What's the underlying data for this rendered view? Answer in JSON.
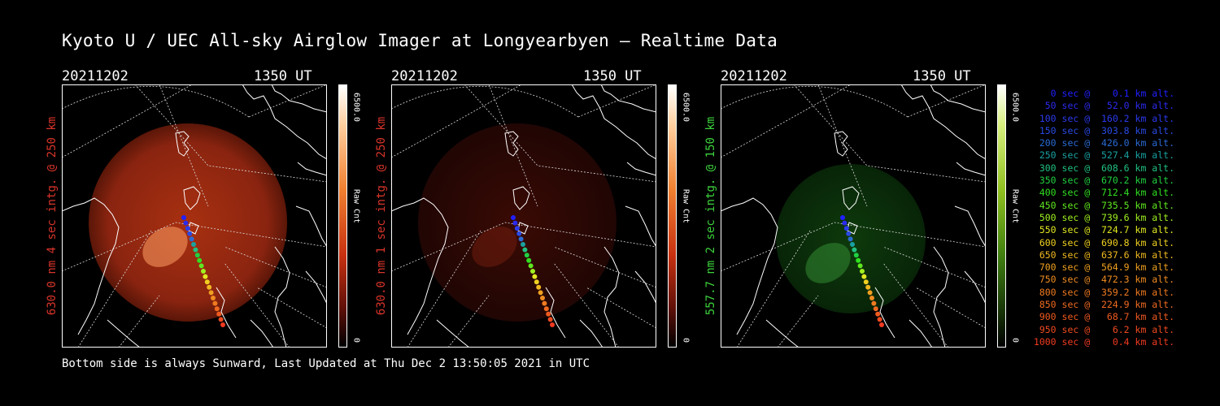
{
  "title": "Kyoto U / UEC All-sky Airglow Imager at Longyearbyen — Realtime Data",
  "footer": "Bottom side is always Sunward, Last Updated at Thu Dec  2 13:50:05 2021 in UTC",
  "panels": [
    {
      "date": "20211202",
      "time": "1350 UT",
      "ylabel": "630.0 nm 4 sec intg. @ 250 km",
      "label_color": "#d8342a",
      "cbar_max": "6500.0",
      "cbar_min": "0",
      "cbar_unit": "Raw Cnt",
      "glow": "red-strong",
      "cbar_color": "red"
    },
    {
      "date": "20211202",
      "time": "1350 UT",
      "ylabel": "630.0 nm 1 sec intg. @ 250 km",
      "label_color": "#d8342a",
      "cbar_max": "6500.0",
      "cbar_min": "0",
      "cbar_unit": "Raw Cnt",
      "glow": "red-weak",
      "cbar_color": "red"
    },
    {
      "date": "20211202",
      "time": "1350 UT",
      "ylabel": "557.7 nm 2 sec intg. @ 150 km",
      "label_color": "#3cd23c",
      "cbar_max": "6500.0",
      "cbar_min": "0",
      "cbar_unit": "Raw Cnt",
      "glow": "green",
      "cbar_color": "green"
    }
  ],
  "legend": [
    {
      "text": "   0 sec @    0.1 km alt.",
      "color": "#2020ff"
    },
    {
      "text": "  50 sec @   52.0 km alt.",
      "color": "#2a2aee"
    },
    {
      "text": " 100 sec @  160.2 km alt.",
      "color": "#2a3aee"
    },
    {
      "text": " 150 sec @  303.8 km alt.",
      "color": "#2a4ae4"
    },
    {
      "text": " 200 sec @  426.0 km alt.",
      "color": "#2a6ad4"
    },
    {
      "text": " 250 sec @  527.4 km alt.",
      "color": "#1aa0a0"
    },
    {
      "text": " 300 sec @  608.6 km alt.",
      "color": "#20c080"
    },
    {
      "text": " 350 sec @  670.2 km alt.",
      "color": "#20d040"
    },
    {
      "text": " 400 sec @  712.4 km alt.",
      "color": "#30e020"
    },
    {
      "text": " 450 sec @  735.5 km alt.",
      "color": "#60e820"
    },
    {
      "text": " 500 sec @  739.6 km alt.",
      "color": "#a0f020"
    },
    {
      "text": " 550 sec @  724.7 km alt.",
      "color": "#e0e820"
    },
    {
      "text": " 600 sec @  690.8 km alt.",
      "color": "#f0d020"
    },
    {
      "text": " 650 sec @  637.6 km alt.",
      "color": "#f0b820"
    },
    {
      "text": " 700 sec @  564.9 km alt.",
      "color": "#f0a020"
    },
    {
      "text": " 750 sec @  472.3 km alt.",
      "color": "#f08c20"
    },
    {
      "text": " 800 sec @  359.2 km alt.",
      "color": "#f07a20"
    },
    {
      "text": " 850 sec @  224.9 km alt.",
      "color": "#f06a20"
    },
    {
      "text": " 900 sec @   68.7 km alt.",
      "color": "#f05a20"
    },
    {
      "text": " 950 sec @    6.2 km alt.",
      "color": "#f04a20"
    },
    {
      "text": "1000 sec @    0.4 km alt.",
      "color": "#f03a20"
    }
  ]
}
